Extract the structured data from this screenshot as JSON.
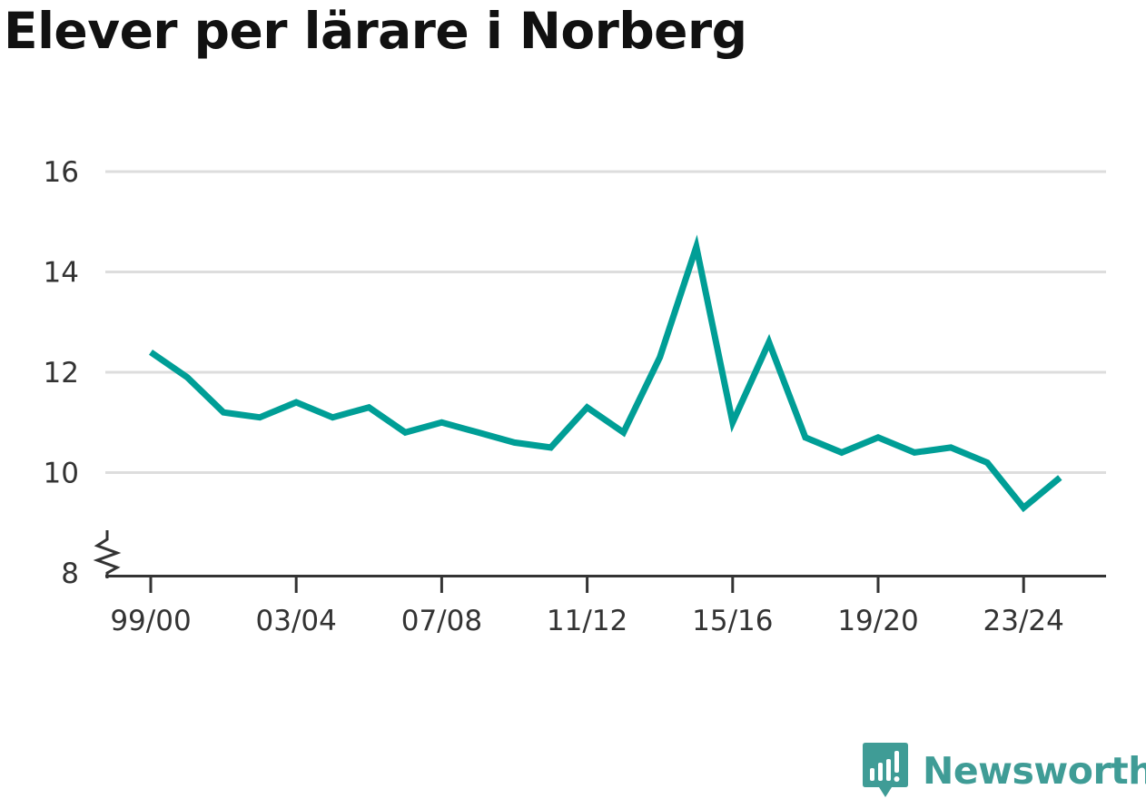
{
  "title": "Elever per lärare i Norberg",
  "brand": {
    "name": "Newsworthy",
    "color": "#3f9c96",
    "icon": "chart-bubble-icon"
  },
  "chart_data": {
    "type": "line",
    "title": "Elever per lärare i Norberg",
    "xlabel": "",
    "ylabel": "",
    "ylim": [
      8,
      16
    ],
    "yticks": [
      8,
      10,
      12,
      14,
      16
    ],
    "y_axis_break": true,
    "grid": true,
    "line_color": "#009e96",
    "categories": [
      "99/00",
      "00/01",
      "01/02",
      "02/03",
      "03/04",
      "04/05",
      "05/06",
      "06/07",
      "07/08",
      "08/09",
      "09/10",
      "10/11",
      "11/12",
      "12/13",
      "13/14",
      "14/15",
      "15/16",
      "16/17",
      "17/18",
      "18/19",
      "19/20",
      "20/21",
      "21/22",
      "22/23",
      "23/24",
      "24/25"
    ],
    "xtick_labels": [
      "99/00",
      "03/04",
      "07/08",
      "11/12",
      "15/16",
      "19/20",
      "23/24"
    ],
    "series": [
      {
        "values": [
          12.4,
          11.9,
          11.2,
          11.1,
          11.4,
          11.1,
          11.3,
          10.8,
          11.0,
          10.8,
          10.6,
          10.5,
          11.3,
          10.8,
          12.3,
          14.5,
          11.0,
          12.6,
          10.7,
          10.4,
          10.7,
          10.4,
          10.5,
          10.2,
          9.3,
          9.9
        ]
      }
    ]
  }
}
